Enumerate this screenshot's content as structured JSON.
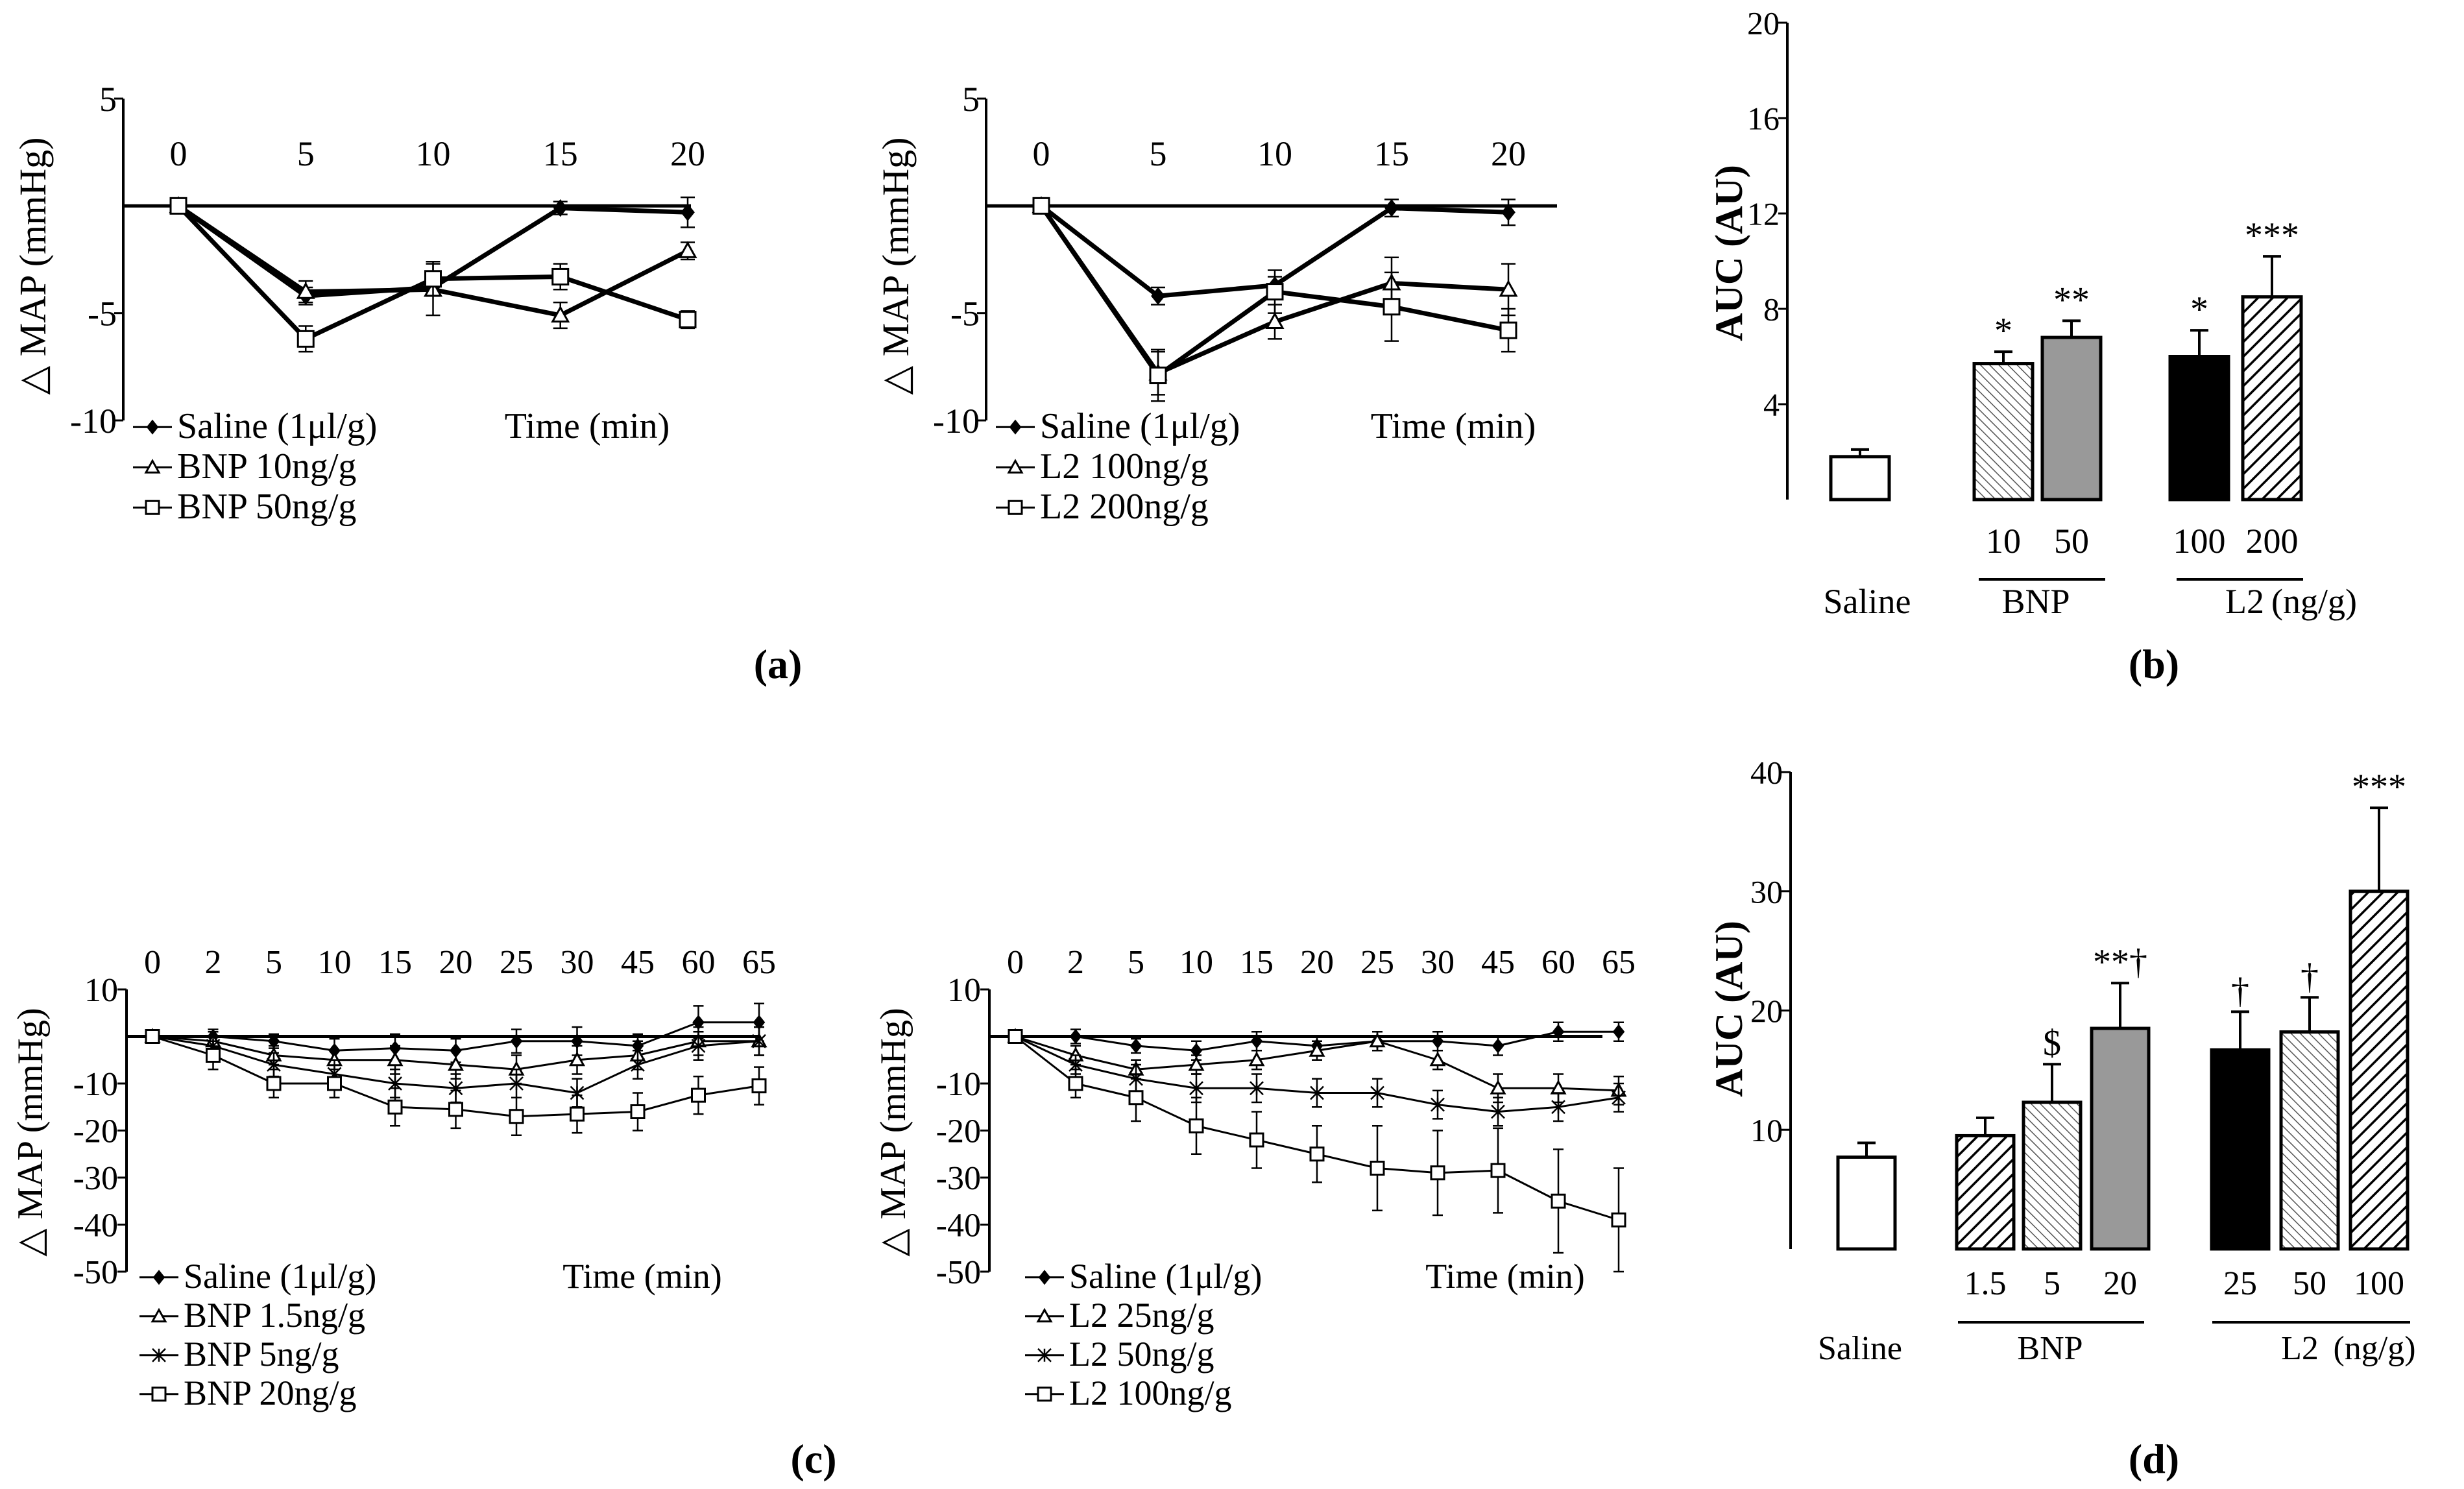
{
  "panel_labels": [
    "(a)",
    "(b)",
    "(c)",
    "(d)"
  ],
  "chart_data": [
    {
      "type": "line",
      "id": "a1",
      "ylabel": "△ MAP (mmHg)",
      "xlabel": "Time (min)",
      "x": [
        0,
        5,
        10,
        15,
        20
      ],
      "xticks": [
        "0",
        "5",
        "10",
        "15",
        "20"
      ],
      "ylim": [
        -10,
        5
      ],
      "yticks": [
        "5",
        "-5",
        "-10"
      ],
      "series": [
        {
          "name": "Saline (1μl/g)",
          "marker": "diamond",
          "values": [
            0,
            -4.2,
            -3.8,
            -0.1,
            -0.3
          ],
          "errors": [
            0,
            0.4,
            0.4,
            0.3,
            0.7
          ]
        },
        {
          "name": "BNP 10ng/g",
          "marker": "triangle",
          "values": [
            0,
            -4.0,
            -3.9,
            -5.1,
            -2.1
          ],
          "errors": [
            0,
            0.5,
            1.2,
            0.6,
            0.4
          ]
        },
        {
          "name": "BNP 50ng/g",
          "marker": "square",
          "values": [
            0,
            -6.2,
            -3.4,
            -3.3,
            -5.3
          ],
          "errors": [
            0,
            0.6,
            0.8,
            0.6,
            0.4
          ]
        }
      ]
    },
    {
      "type": "line",
      "id": "a2",
      "ylabel": "△ MAP (mmHg)",
      "xlabel": "Time (min)",
      "x": [
        0,
        5,
        10,
        15,
        20
      ],
      "xticks": [
        "0",
        "5",
        "10",
        "15",
        "20"
      ],
      "ylim": [
        -10,
        5
      ],
      "yticks": [
        "5",
        "-5",
        "-10"
      ],
      "series": [
        {
          "name": "Saline (1μl/g)",
          "marker": "diamond",
          "values": [
            0,
            -4.2,
            -3.7,
            -0.1,
            -0.3
          ],
          "errors": [
            0,
            0.4,
            0.4,
            0.4,
            0.6
          ]
        },
        {
          "name": "L2 100ng/g",
          "marker": "triangle",
          "values": [
            0,
            -7.8,
            -5.4,
            -3.6,
            -3.9
          ],
          "errors": [
            0,
            1.0,
            0.8,
            1.2,
            1.2
          ]
        },
        {
          "name": "L2 200ng/g",
          "marker": "square",
          "values": [
            0,
            -7.9,
            -4.0,
            -4.7,
            -5.8
          ],
          "errors": [
            0,
            1.2,
            1.0,
            1.6,
            1.0
          ]
        }
      ]
    },
    {
      "type": "bar",
      "id": "b",
      "ylabel": "AUC (AU)",
      "ylim": [
        0,
        20
      ],
      "yticks": [
        "4",
        "8",
        "12",
        "16",
        "20"
      ],
      "categories": [
        "Saline",
        "10",
        "50",
        "100",
        "200"
      ],
      "values": [
        1.8,
        5.7,
        6.8,
        6.0,
        8.5
      ],
      "errors": [
        0.3,
        0.5,
        0.7,
        1.1,
        1.7
      ],
      "fills": [
        "white",
        "dots",
        "gray",
        "black",
        "hatch"
      ],
      "significance": [
        "",
        "*",
        "**",
        "*",
        "***"
      ],
      "group_labels": {
        "saline": "Saline",
        "bnp": "BNP",
        "l2": "L2",
        "unit": "(ng/g)"
      }
    },
    {
      "type": "line",
      "id": "c1",
      "ylabel": "△ MAP (mmHg)",
      "xlabel": "Time (min)",
      "x": [
        0,
        2,
        5,
        10,
        15,
        20,
        25,
        30,
        45,
        60,
        65
      ],
      "xticks": [
        "0",
        "2",
        "5",
        "10",
        "15",
        "20",
        "25",
        "30",
        "45",
        "60",
        "65"
      ],
      "ylim": [
        -50,
        10
      ],
      "yticks": [
        "10",
        "-10",
        "-20",
        "-30",
        "-40",
        "-50"
      ],
      "series": [
        {
          "name": "Saline (1μl/g)",
          "marker": "diamond",
          "values": [
            0,
            0,
            -1,
            -3,
            -2.5,
            -3,
            -1,
            -1,
            -2,
            3,
            3
          ],
          "errors": [
            0,
            1.5,
            1.5,
            2.5,
            3,
            2.5,
            2.5,
            3,
            2.5,
            3.5,
            4
          ]
        },
        {
          "name": "BNP 1.5ng/g",
          "marker": "triangle",
          "values": [
            0,
            -1,
            -4,
            -5,
            -5,
            -6,
            -7,
            -5,
            -4,
            -1,
            -1
          ],
          "errors": [
            0,
            2,
            2,
            2,
            3,
            3,
            3,
            3,
            3,
            3,
            3
          ]
        },
        {
          "name": "BNP 5ng/g",
          "marker": "star",
          "values": [
            0,
            -2,
            -6,
            -8,
            -10,
            -11,
            -10,
            -12,
            -6,
            -2,
            -1
          ],
          "errors": [
            0,
            2,
            2.5,
            3,
            3,
            3,
            3,
            3,
            3,
            3,
            3
          ]
        },
        {
          "name": "BNP 20ng/g",
          "marker": "square",
          "values": [
            0,
            -4,
            -10,
            -10,
            -15,
            -15.5,
            -17,
            -16.5,
            -16,
            -12.5,
            -10.5
          ],
          "errors": [
            0,
            3,
            3,
            3,
            4,
            4,
            4,
            4,
            4,
            4,
            4
          ]
        }
      ]
    },
    {
      "type": "line",
      "id": "c2",
      "ylabel": "△ MAP (mmHg)",
      "xlabel": "Time (min)",
      "x": [
        0,
        2,
        5,
        10,
        15,
        20,
        25,
        30,
        45,
        60,
        65
      ],
      "xticks": [
        "0",
        "2",
        "5",
        "10",
        "15",
        "20",
        "25",
        "30",
        "45",
        "60",
        "65"
      ],
      "ylim": [
        -50,
        10
      ],
      "yticks": [
        "10",
        "-10",
        "-20",
        "-30",
        "-40",
        "-50"
      ],
      "series": [
        {
          "name": "Saline (1μl/g)",
          "marker": "diamond",
          "values": [
            0,
            0,
            -2,
            -3,
            -1,
            -2,
            -1,
            -1,
            -2,
            1,
            1
          ],
          "errors": [
            0,
            1.5,
            1.5,
            2,
            2,
            2,
            2,
            2,
            2,
            2,
            2
          ]
        },
        {
          "name": "L2 25ng/g",
          "marker": "triangle",
          "values": [
            0,
            -4,
            -7,
            -6,
            -5,
            -3,
            -1,
            -5,
            -11,
            -11,
            -11.5
          ],
          "errors": [
            0,
            2,
            2,
            2,
            2,
            2,
            2,
            2,
            3,
            3,
            3
          ]
        },
        {
          "name": "L2 50ng/g",
          "marker": "star",
          "values": [
            0,
            -6,
            -9,
            -11,
            -11,
            -12,
            -12,
            -14.5,
            -16,
            -15,
            -13
          ],
          "errors": [
            0,
            2,
            3,
            3,
            3,
            3,
            3,
            3,
            3,
            3,
            3
          ]
        },
        {
          "name": "L2 100ng/g",
          "marker": "square",
          "values": [
            0,
            -10,
            -13,
            -19,
            -22,
            -25,
            -28,
            -29,
            -28.5,
            -35,
            -39
          ],
          "errors": [
            0,
            3,
            5,
            6,
            6,
            6,
            9,
            9,
            9,
            11,
            11
          ]
        }
      ]
    },
    {
      "type": "bar",
      "id": "d",
      "ylabel": "AUC (AU)",
      "ylim": [
        0,
        40
      ],
      "yticks": [
        "10",
        "20",
        "30",
        "40"
      ],
      "categories": [
        "Saline",
        "1.5",
        "5",
        "20",
        "25",
        "50",
        "100"
      ],
      "values": [
        7.7,
        9.5,
        12.3,
        18.5,
        16.7,
        18.2,
        30.0
      ],
      "errors": [
        1.2,
        1.5,
        3.2,
        3.8,
        3.2,
        2.9,
        7.0
      ],
      "fills": [
        "white",
        "hatch",
        "dots",
        "gray",
        "black",
        "dots",
        "hatch"
      ],
      "significance": [
        "",
        "",
        "$",
        "**†",
        "†",
        "†",
        "***"
      ],
      "group_labels": {
        "saline": "Saline",
        "bnp": "BNP",
        "l2": "L2",
        "unit": "(ng/g)"
      }
    }
  ]
}
